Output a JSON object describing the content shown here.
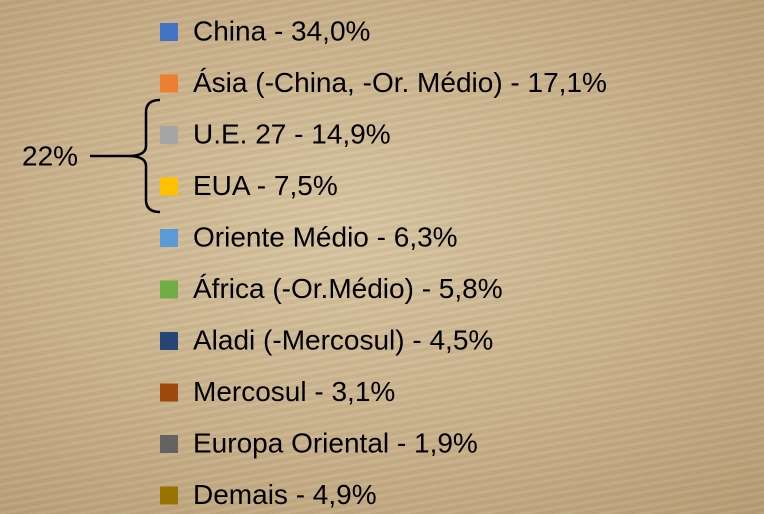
{
  "legend": {
    "items": [
      {
        "label": "China - 34,0%",
        "color": "#4472c4"
      },
      {
        "label": "Ásia (-China, -Or. Médio) - 17,1%",
        "color": "#ed7d31"
      },
      {
        "label": "U.E. 27 - 14,9%",
        "color": "#a5a5a5"
      },
      {
        "label": "EUA - 7,5%",
        "color": "#ffc000"
      },
      {
        "label": "Oriente Médio - 6,3%",
        "color": "#5b9bd5"
      },
      {
        "label": "África (-Or.Médio) - 5,8%",
        "color": "#70ad47"
      },
      {
        "label": "Aladi (-Mercosul) - 4,5%",
        "color": "#264478"
      },
      {
        "label": "Mercosul - 3,1%",
        "color": "#9e480e"
      },
      {
        "label": "Europa Oriental - 1,9%",
        "color": "#636363"
      },
      {
        "label": "Demais - 4,9%",
        "color": "#997300"
      }
    ]
  },
  "annotation": "22%"
}
